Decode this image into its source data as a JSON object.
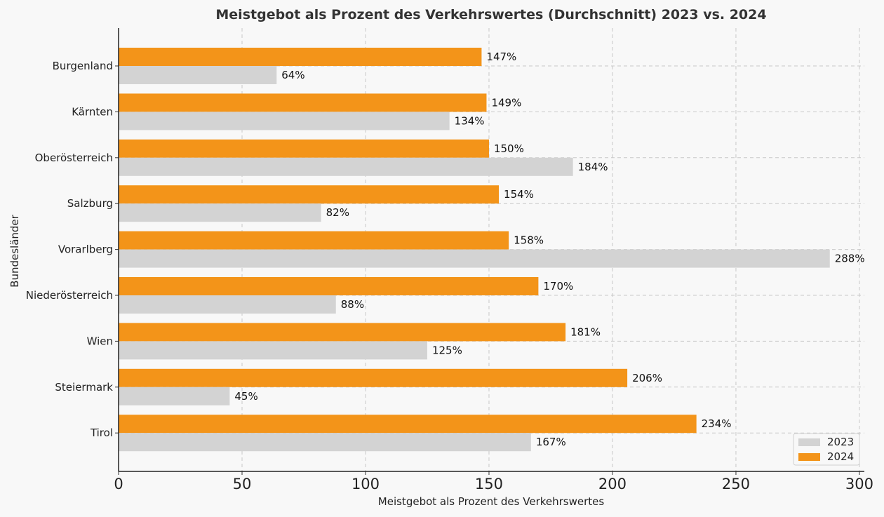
{
  "chart_data": {
    "type": "bar",
    "orientation": "horizontal",
    "title": "Meistgebot als Prozent des Verkehrswertes (Durchschnitt) 2023 vs. 2024",
    "xlabel": "Meistgebot als Prozent des Verkehrswertes",
    "ylabel": "Bundesländer",
    "xlim": [
      0,
      302
    ],
    "xticks": [
      0,
      50,
      100,
      150,
      200,
      250,
      300
    ],
    "grid": true,
    "legend_position": "bottom-right",
    "categories": [
      "Burgenland",
      "Kärnten",
      "Oberösterreich",
      "Salzburg",
      "Vorarlberg",
      "Niederösterreich",
      "Wien",
      "Steiermark",
      "Tirol"
    ],
    "series": [
      {
        "name": "2023",
        "color": "#d3d3d3",
        "values": [
          64,
          134,
          184,
          82,
          288,
          88,
          125,
          45,
          167
        ],
        "labels": [
          "64%",
          "134%",
          "184%",
          "82%",
          "288%",
          "88%",
          "125%",
          "45%",
          "167%"
        ]
      },
      {
        "name": "2024",
        "color": "#f39419",
        "values": [
          147,
          149,
          150,
          154,
          158,
          170,
          181,
          206,
          234
        ],
        "labels": [
          "147%",
          "149%",
          "150%",
          "154%",
          "158%",
          "170%",
          "181%",
          "206%",
          "234%"
        ]
      }
    ]
  }
}
